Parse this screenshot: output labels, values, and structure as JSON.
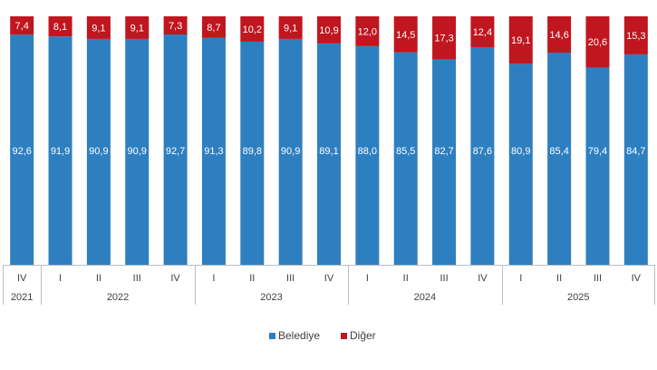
{
  "chart_data": {
    "type": "bar",
    "stacked": true,
    "categories": [
      "IV",
      "I",
      "II",
      "III",
      "IV",
      "I",
      "II",
      "III",
      "IV",
      "I",
      "II",
      "III",
      "IV",
      "I",
      "II",
      "III",
      "IV"
    ],
    "year_groups": [
      {
        "label": "2021",
        "count": 1
      },
      {
        "label": "2022",
        "count": 4
      },
      {
        "label": "2023",
        "count": 4
      },
      {
        "label": "2024",
        "count": 4
      },
      {
        "label": "2025",
        "count": 4
      }
    ],
    "series": [
      {
        "name": "Belediye",
        "color": "#2e7fc0",
        "values": [
          92.6,
          91.9,
          90.9,
          90.9,
          92.7,
          91.3,
          89.8,
          90.9,
          89.1,
          88.0,
          85.5,
          82.7,
          87.6,
          80.9,
          85.4,
          79.4,
          84.7
        ],
        "labels": [
          "92,6",
          "91,9",
          "90,9",
          "90,9",
          "92,7",
          "91,3",
          "89,8",
          "90,9",
          "89,1",
          "88,0",
          "85,5",
          "82,7",
          "87,6",
          "80,9",
          "85,4",
          "79,4",
          "84,7"
        ]
      },
      {
        "name": "Diğer",
        "color": "#c0161f",
        "values": [
          7.4,
          8.1,
          9.1,
          9.1,
          7.3,
          8.7,
          10.2,
          9.1,
          10.9,
          12.0,
          14.5,
          17.3,
          12.4,
          19.1,
          14.6,
          20.6,
          15.3
        ],
        "labels": [
          "7,4",
          "8,1",
          "9,1",
          "9,1",
          "7,3",
          "8,7",
          "10,2",
          "9,1",
          "10,9",
          "12,0",
          "14,5",
          "17,3",
          "12,4",
          "19,1",
          "14,6",
          "20,6",
          "15,3"
        ]
      }
    ],
    "ylim": [
      0,
      100
    ],
    "grid": false,
    "legend": "bottom"
  }
}
